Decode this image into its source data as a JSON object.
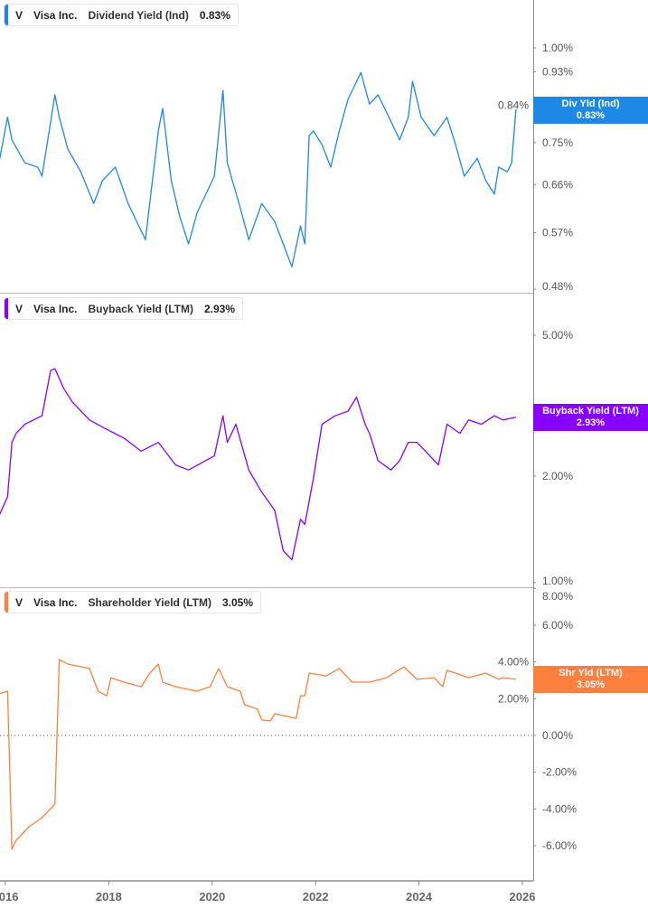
{
  "chart_data": [
    {
      "type": "line",
      "ticker": "V",
      "company": "Visa Inc.",
      "metric": "Dividend Yield (Ind)",
      "current": "0.83%",
      "badge_title": "Div Yld (Ind)",
      "badge_value": "0.83%",
      "color": "#1e88e5",
      "y_scale": "log",
      "ylim": [
        0.475,
        1.157
      ],
      "y_ticks": [
        "1.00%",
        "0.93%",
        "0.84%",
        "0.75%",
        "0.66%",
        "0.57%",
        "0.48%"
      ],
      "y_tick_values": [
        1.0,
        0.93,
        0.84,
        0.75,
        0.66,
        0.57,
        0.48
      ],
      "points": [
        [
          "2015-11",
          0.705
        ],
        [
          "2016-01",
          0.81
        ],
        [
          "2016-02",
          0.756
        ],
        [
          "2016-05",
          0.705
        ],
        [
          "2016-08",
          0.696
        ],
        [
          "2016-09",
          0.677
        ],
        [
          "2016-11",
          0.8
        ],
        [
          "2016-12",
          0.867
        ],
        [
          "2017-01",
          0.81
        ],
        [
          "2017-03",
          0.735
        ],
        [
          "2017-06",
          0.686
        ],
        [
          "2017-09",
          0.623
        ],
        [
          "2017-11",
          0.668
        ],
        [
          "2018-02",
          0.696
        ],
        [
          "2018-05",
          0.623
        ],
        [
          "2018-09",
          0.558
        ],
        [
          "2018-12",
          0.777
        ],
        [
          "2019-01",
          0.832
        ],
        [
          "2019-03",
          0.668
        ],
        [
          "2019-05",
          0.598
        ],
        [
          "2019-07",
          0.551
        ],
        [
          "2019-09",
          0.606
        ],
        [
          "2020-01",
          0.677
        ],
        [
          "2020-03",
          0.879
        ],
        [
          "2020-04",
          0.705
        ],
        [
          "2020-07",
          0.615
        ],
        [
          "2020-09",
          0.558
        ],
        [
          "2020-12",
          0.623
        ],
        [
          "2021-03",
          0.59
        ],
        [
          "2021-05",
          0.551
        ],
        [
          "2021-07",
          0.514
        ],
        [
          "2021-09",
          0.582
        ],
        [
          "2021-10",
          0.551
        ],
        [
          "2021-11",
          0.766
        ],
        [
          "2021-12",
          0.777
        ],
        [
          "2022-02",
          0.745
        ],
        [
          "2022-04",
          0.696
        ],
        [
          "2022-06",
          0.777
        ],
        [
          "2022-08",
          0.855
        ],
        [
          "2022-11",
          0.928
        ],
        [
          "2023-01",
          0.843
        ],
        [
          "2023-03",
          0.867
        ],
        [
          "2023-06",
          0.8
        ],
        [
          "2023-08",
          0.756
        ],
        [
          "2023-10",
          0.81
        ],
        [
          "2023-11",
          0.903
        ],
        [
          "2024-01",
          0.81
        ],
        [
          "2024-04",
          0.766
        ],
        [
          "2024-07",
          0.81
        ],
        [
          "2024-09",
          0.745
        ],
        [
          "2024-11",
          0.677
        ],
        [
          "2025-02",
          0.715
        ],
        [
          "2025-04",
          0.668
        ],
        [
          "2025-06",
          0.641
        ],
        [
          "2025-07",
          0.696
        ],
        [
          "2025-09",
          0.686
        ],
        [
          "2025-10",
          0.705
        ],
        [
          "2025-11",
          0.83
        ]
      ]
    },
    {
      "type": "line",
      "ticker": "V",
      "company": "Visa Inc.",
      "metric": "Buyback Yield (LTM)",
      "current": "2.93%",
      "badge_title": "Buyback Yield (LTM)",
      "badge_value": "2.93%",
      "color": "#8800ff",
      "y_scale": "log",
      "ylim": [
        0.97,
        6.55
      ],
      "y_ticks": [
        "5.00%",
        "2.00%",
        "1.00%"
      ],
      "y_tick_values": [
        5.0,
        2.0,
        1.0
      ],
      "points": [
        [
          "2015-11",
          1.54
        ],
        [
          "2016-01",
          1.75
        ],
        [
          "2016-02",
          2.49
        ],
        [
          "2016-03",
          2.64
        ],
        [
          "2016-05",
          2.8
        ],
        [
          "2016-07",
          2.88
        ],
        [
          "2016-09",
          2.96
        ],
        [
          "2016-11",
          3.98
        ],
        [
          "2016-12",
          4.02
        ],
        [
          "2017-02",
          3.54
        ],
        [
          "2017-04",
          3.24
        ],
        [
          "2017-08",
          2.88
        ],
        [
          "2017-12",
          2.71
        ],
        [
          "2018-04",
          2.56
        ],
        [
          "2018-08",
          2.35
        ],
        [
          "2018-12",
          2.49
        ],
        [
          "2019-04",
          2.15
        ],
        [
          "2019-07",
          2.08
        ],
        [
          "2020-01",
          2.28
        ],
        [
          "2020-03",
          2.96
        ],
        [
          "2020-04",
          2.49
        ],
        [
          "2020-06",
          2.8
        ],
        [
          "2020-09",
          2.08
        ],
        [
          "2020-12",
          1.8
        ],
        [
          "2021-03",
          1.6
        ],
        [
          "2021-05",
          1.23
        ],
        [
          "2021-07",
          1.16
        ],
        [
          "2021-09",
          1.51
        ],
        [
          "2021-10",
          1.46
        ],
        [
          "2021-12",
          1.97
        ],
        [
          "2022-02",
          2.8
        ],
        [
          "2022-05",
          2.96
        ],
        [
          "2022-08",
          3.05
        ],
        [
          "2022-10",
          3.34
        ],
        [
          "2022-12",
          2.8
        ],
        [
          "2023-01",
          2.64
        ],
        [
          "2023-03",
          2.21
        ],
        [
          "2023-06",
          2.08
        ],
        [
          "2023-08",
          2.21
        ],
        [
          "2023-10",
          2.49
        ],
        [
          "2023-12",
          2.49
        ],
        [
          "2024-02",
          2.35
        ],
        [
          "2024-05",
          2.15
        ],
        [
          "2024-07",
          2.8
        ],
        [
          "2024-10",
          2.64
        ],
        [
          "2024-12",
          2.88
        ],
        [
          "2025-03",
          2.8
        ],
        [
          "2025-06",
          2.96
        ],
        [
          "2025-08",
          2.88
        ],
        [
          "2025-11",
          2.93
        ]
      ]
    },
    {
      "type": "line",
      "ticker": "V",
      "company": "Visa Inc.",
      "metric": "Shareholder Yield (LTM)",
      "current": "3.05%",
      "badge_title": "Shr Yld (LTM)",
      "badge_value": "3.05%",
      "color": "#ff7f3f",
      "y_scale": "linear",
      "ylim": [
        -7.91,
        8.01
      ],
      "zero_line": true,
      "y_ticks": [
        "8.00%",
        "6.00%",
        "4.00%",
        "2.00%",
        "0.00%",
        "-2.00%",
        "-4.00%",
        "-6.00%"
      ],
      "y_tick_values": [
        8,
        6,
        4,
        2,
        0,
        -2,
        -4,
        -6
      ],
      "points": [
        [
          "2015-11",
          2.26
        ],
        [
          "2016-01",
          2.41
        ],
        [
          "2016-02",
          -6.19
        ],
        [
          "2016-03",
          -5.7
        ],
        [
          "2016-06",
          -4.96
        ],
        [
          "2016-09",
          -4.47
        ],
        [
          "2016-11",
          -3.98
        ],
        [
          "2016-12",
          -3.73
        ],
        [
          "2017-01",
          4.13
        ],
        [
          "2017-03",
          3.88
        ],
        [
          "2017-08",
          3.64
        ],
        [
          "2017-10",
          2.41
        ],
        [
          "2017-12",
          2.16
        ],
        [
          "2018-01",
          3.14
        ],
        [
          "2018-04",
          2.9
        ],
        [
          "2018-08",
          2.65
        ],
        [
          "2018-10",
          3.39
        ],
        [
          "2018-12",
          3.88
        ],
        [
          "2019-01",
          2.9
        ],
        [
          "2019-04",
          2.65
        ],
        [
          "2019-09",
          2.41
        ],
        [
          "2019-12",
          2.65
        ],
        [
          "2020-02",
          3.64
        ],
        [
          "2020-04",
          2.65
        ],
        [
          "2020-07",
          2.41
        ],
        [
          "2020-08",
          1.67
        ],
        [
          "2020-11",
          1.43
        ],
        [
          "2020-12",
          0.84
        ],
        [
          "2021-02",
          0.79
        ],
        [
          "2021-03",
          1.18
        ],
        [
          "2021-08",
          0.93
        ],
        [
          "2021-09",
          2.16
        ],
        [
          "2021-10",
          2.16
        ],
        [
          "2021-11",
          3.39
        ],
        [
          "2022-03",
          3.24
        ],
        [
          "2022-06",
          3.64
        ],
        [
          "2022-09",
          2.9
        ],
        [
          "2023-01",
          2.9
        ],
        [
          "2023-05",
          3.14
        ],
        [
          "2023-09",
          3.73
        ],
        [
          "2023-12",
          3.05
        ],
        [
          "2024-04",
          3.14
        ],
        [
          "2024-06",
          2.65
        ],
        [
          "2024-07",
          3.54
        ],
        [
          "2024-09",
          3.39
        ],
        [
          "2024-12",
          3.14
        ],
        [
          "2025-04",
          3.39
        ],
        [
          "2025-07",
          3.05
        ],
        [
          "2025-08",
          3.14
        ],
        [
          "2025-11",
          3.05
        ]
      ]
    }
  ],
  "x_axis": {
    "ticks": [
      "2016",
      "2018",
      "2020",
      "2022",
      "2024",
      "2026"
    ]
  }
}
